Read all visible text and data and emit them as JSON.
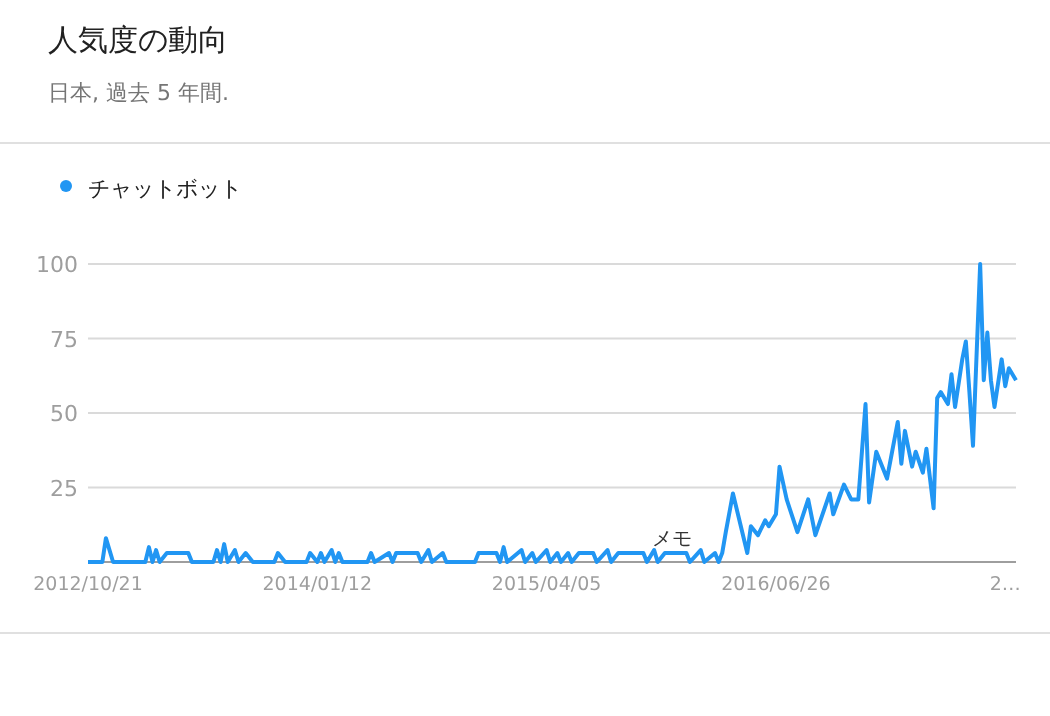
{
  "chart_data": {
    "type": "line",
    "title": "人気度の動向",
    "subtitle": "日本, 過去 5 年間.",
    "legend": "top left",
    "grid": "y",
    "ylim": [
      0,
      100
    ],
    "yticks": [
      25,
      50,
      75,
      100
    ],
    "xlim": [
      "2012-10-21",
      "2017-10-08"
    ],
    "xticks": [
      {
        "value": "2012-10-21",
        "label": "2012/10/21"
      },
      {
        "value": "2014-01-12",
        "label": "2014/01/12"
      },
      {
        "value": "2015-04-05",
        "label": "2015/04/05"
      },
      {
        "value": "2016-06-26",
        "label": "2016/06/26"
      },
      {
        "value": "2017-09-17",
        "label": "2…"
      }
    ],
    "annotations": [
      {
        "text": "メモ",
        "x": "2015-12-06",
        "y": 5
      }
    ],
    "series": [
      {
        "name": "チャットボット",
        "color": "#2196f3",
        "x": [
          "2012-10-21",
          "2012-11-18",
          "2012-11-25",
          "2012-12-09",
          "2013-02-10",
          "2013-02-17",
          "2013-02-24",
          "2013-03-03",
          "2013-03-10",
          "2013-03-24",
          "2013-05-05",
          "2013-05-12",
          "2013-06-23",
          "2013-06-30",
          "2013-07-07",
          "2013-07-14",
          "2013-07-21",
          "2013-08-04",
          "2013-08-11",
          "2013-08-25",
          "2013-09-08",
          "2013-10-20",
          "2013-10-27",
          "2013-11-10",
          "2013-12-22",
          "2013-12-29",
          "2014-01-12",
          "2014-01-19",
          "2014-01-26",
          "2014-02-09",
          "2014-02-16",
          "2014-02-23",
          "2014-03-02",
          "2014-04-20",
          "2014-04-27",
          "2014-05-04",
          "2014-06-01",
          "2014-06-08",
          "2014-06-15",
          "2014-07-27",
          "2014-08-03",
          "2014-08-17",
          "2014-08-24",
          "2014-09-14",
          "2014-09-21",
          "2014-11-16",
          "2014-11-23",
          "2014-12-28",
          "2015-01-04",
          "2015-01-11",
          "2015-01-18",
          "2015-02-15",
          "2015-02-22",
          "2015-03-08",
          "2015-03-15",
          "2015-04-05",
          "2015-04-12",
          "2015-04-26",
          "2015-05-03",
          "2015-05-17",
          "2015-05-24",
          "2015-06-07",
          "2015-07-05",
          "2015-07-12",
          "2015-08-02",
          "2015-08-09",
          "2015-08-23",
          "2015-10-11",
          "2015-10-18",
          "2015-11-01",
          "2015-11-08",
          "2015-11-22",
          "2016-01-03",
          "2016-01-10",
          "2016-01-31",
          "2016-02-07",
          "2016-02-28",
          "2016-03-06",
          "2016-03-13",
          "2016-03-20",
          "2016-04-03",
          "2016-05-01",
          "2016-05-08",
          "2016-05-22",
          "2016-06-05",
          "2016-06-12",
          "2016-06-26",
          "2016-07-03",
          "2016-07-17",
          "2016-08-07",
          "2016-08-28",
          "2016-09-11",
          "2016-10-09",
          "2016-10-16",
          "2016-11-06",
          "2016-11-20",
          "2016-12-04",
          "2016-12-18",
          "2016-12-25",
          "2017-01-08",
          "2017-01-29",
          "2017-02-19",
          "2017-02-26",
          "2017-03-05",
          "2017-03-19",
          "2017-03-26",
          "2017-04-09",
          "2017-04-16",
          "2017-04-30",
          "2017-05-07",
          "2017-05-14",
          "2017-05-28",
          "2017-06-04",
          "2017-06-11",
          "2017-06-25",
          "2017-07-02",
          "2017-07-09",
          "2017-07-16",
          "2017-07-30",
          "2017-08-06",
          "2017-08-13",
          "2017-08-20",
          "2017-08-27",
          "2017-09-10",
          "2017-09-17",
          "2017-09-24",
          "2017-10-08"
        ],
        "values": [
          0,
          0,
          8,
          0,
          0,
          5,
          0,
          4,
          0,
          3,
          3,
          0,
          0,
          4,
          0,
          6,
          0,
          4,
          0,
          3,
          0,
          0,
          3,
          0,
          0,
          3,
          0,
          3,
          0,
          4,
          0,
          3,
          0,
          0,
          3,
          0,
          3,
          0,
          3,
          3,
          0,
          4,
          0,
          3,
          0,
          0,
          3,
          3,
          0,
          5,
          0,
          4,
          0,
          3,
          0,
          4,
          0,
          3,
          0,
          3,
          0,
          3,
          3,
          0,
          4,
          0,
          3,
          3,
          0,
          4,
          0,
          3,
          3,
          0,
          4,
          0,
          3,
          0,
          3,
          10,
          23,
          3,
          12,
          9,
          14,
          12,
          16,
          32,
          21,
          10,
          21,
          9,
          23,
          16,
          26,
          21,
          21,
          53,
          20,
          37,
          28,
          47,
          33,
          44,
          32,
          37,
          30,
          38,
          18,
          55,
          57,
          53,
          63,
          52,
          68,
          74,
          57,
          39,
          100,
          61,
          77,
          61,
          52,
          68,
          59,
          65,
          61
        ]
      }
    ]
  }
}
